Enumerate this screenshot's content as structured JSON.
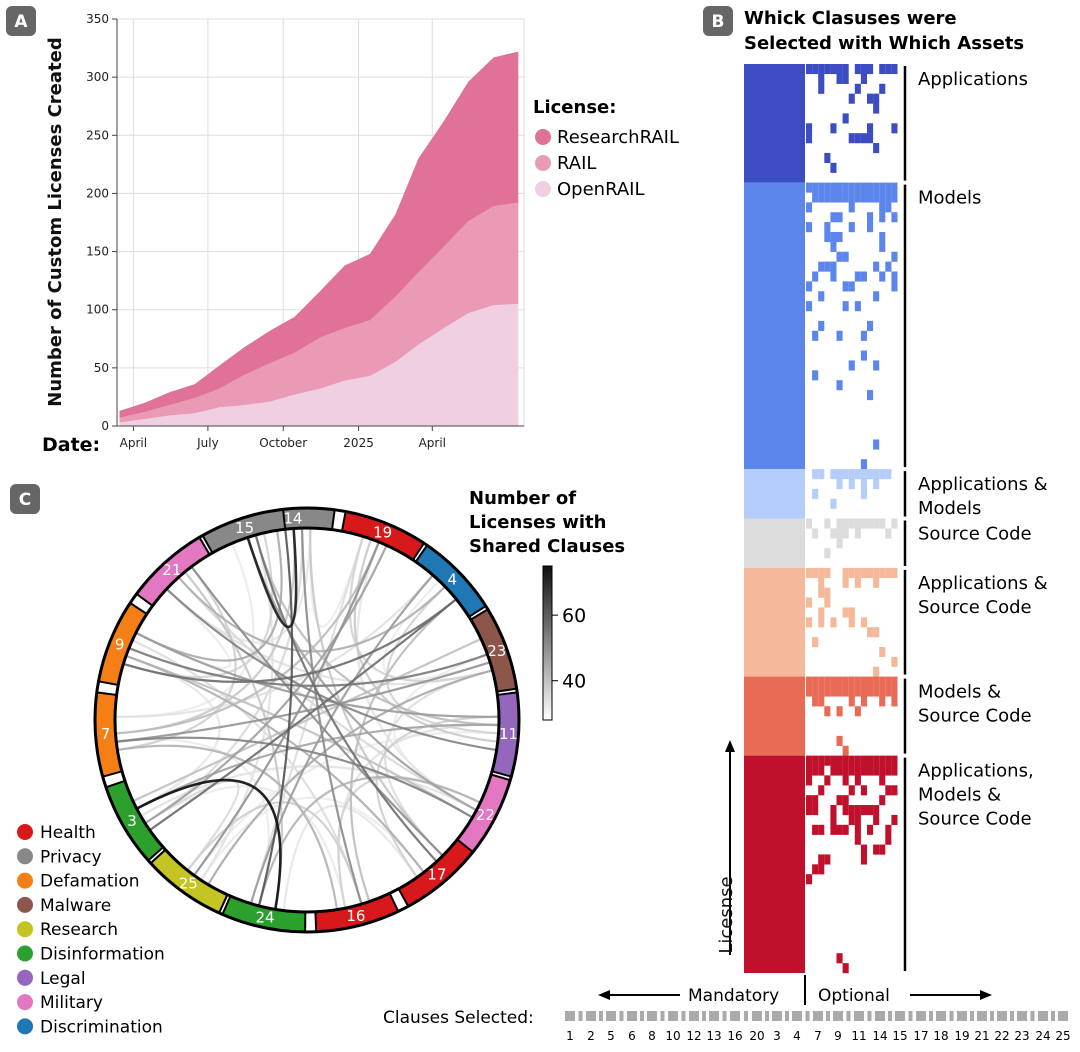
{
  "panels": {
    "a": {
      "badge": "A",
      "ylabel": "Number of Custom Licenses Created",
      "xlabel": "Date:",
      "legend_title": "License:"
    },
    "b": {
      "badge": "B",
      "title_line1": "Whick Clasuses were",
      "title_line2": "Selected with Which Assets",
      "row_axis_label": "Licesnse",
      "mandatory_label": "Mandatory",
      "optional_label": "Optional",
      "clauses_label": "Clauses Selected:"
    },
    "c": {
      "badge": "C",
      "colorbar_title": [
        "Number of",
        "Licenses with",
        "Shared Clauses"
      ]
    }
  },
  "chart_data": [
    {
      "type": "area",
      "stacked": true,
      "ylim": [
        0,
        350
      ],
      "yticks": [
        0,
        50,
        100,
        150,
        200,
        250,
        300,
        350
      ],
      "x": [
        "2024-03-15",
        "2024-04-15",
        "2024-05-15",
        "2024-06-15",
        "2024-07-15",
        "2024-08-15",
        "2024-09-15",
        "2024-10-15",
        "2024-11-15",
        "2024-12-15",
        "2025-01-15",
        "2025-02-15",
        "2025-03-15",
        "2025-04-15",
        "2025-05-15",
        "2025-06-15",
        "2025-07-15"
      ],
      "xticks": [
        {
          "date": "2024-04-01",
          "label": "April"
        },
        {
          "date": "2024-07-01",
          "label": "July"
        },
        {
          "date": "2024-10-01",
          "label": "October"
        },
        {
          "date": "2025-01-01",
          "label": "2025"
        },
        {
          "date": "2025-04-01",
          "label": "April"
        }
      ],
      "grid": true,
      "legend": "right",
      "series": [
        {
          "name": "ResearchRAIL",
          "color": "#e07199",
          "values": [
            6,
            8,
            11,
            12,
            20,
            24,
            28,
            31,
            40,
            54,
            57,
            71,
            98,
            108,
            120,
            128,
            130
          ]
        },
        {
          "name": "RAIL",
          "color": "#ea9ab5",
          "values": [
            4,
            6,
            9,
            13,
            16,
            26,
            33,
            36,
            44,
            45,
            48,
            56,
            62,
            70,
            79,
            85,
            87
          ]
        },
        {
          "name": "OpenRAIL",
          "color": "#f0cfe2",
          "values": [
            3,
            6,
            9,
            11,
            16,
            18,
            21,
            27,
            32,
            39,
            43,
            55,
            70,
            84,
            97,
            104,
            105
          ]
        }
      ]
    },
    {
      "type": "heatmap",
      "columns": [
        "1",
        "2",
        "5",
        "6",
        "8",
        "10",
        "12",
        "13",
        "16",
        "20",
        "3",
        "4",
        "7",
        "9",
        "11",
        "14",
        "15",
        "17",
        "18",
        "19",
        "21",
        "22",
        "23",
        "24",
        "25"
      ],
      "mandatory_columns": 10,
      "x_groups": [
        "Mandatory",
        "Optional"
      ],
      "row_groups": [
        {
          "label_lines": [
            "Applications"
          ],
          "color": "#3c4dc4",
          "rows": 12
        },
        {
          "label_lines": [
            "Models"
          ],
          "color": "#5d86ec",
          "rows": 29
        },
        {
          "label_lines": [
            "Applications &",
            "Models"
          ],
          "color": "#b4cdfb",
          "rows": 5
        },
        {
          "label_lines": [
            "Source Code"
          ],
          "color": "#dcdcdc",
          "rows": 5
        },
        {
          "label_lines": [
            "Applications &",
            "Source Code"
          ],
          "color": "#f6b89a",
          "rows": 11
        },
        {
          "label_lines": [
            "Models &",
            "Source Code"
          ],
          "color": "#e76b55",
          "rows": 8
        },
        {
          "label_lines": [
            "Applications,",
            "Models &",
            "Source Code"
          ],
          "color": "#c0102b",
          "rows": 22
        }
      ]
    },
    {
      "type": "chord",
      "colorbar": {
        "range": [
          28,
          75
        ],
        "ticks": [
          40,
          60
        ]
      },
      "categories": [
        {
          "name": "Health",
          "color": "#d7191c"
        },
        {
          "name": "Privacy",
          "color": "#888888"
        },
        {
          "name": "Defamation",
          "color": "#f57f17"
        },
        {
          "name": "Malware",
          "color": "#8c564b"
        },
        {
          "name": "Research",
          "color": "#c4c422"
        },
        {
          "name": "Disinformation",
          "color": "#2ca02c"
        },
        {
          "name": "Legal",
          "color": "#9467bd"
        },
        {
          "name": "Military",
          "color": "#e377c2"
        },
        {
          "name": "Discrimination",
          "color": "#1f77b4"
        }
      ],
      "segments": [
        {
          "label": "14",
          "category": "Privacy"
        },
        {
          "label": "19",
          "category": "Health"
        },
        {
          "label": "4",
          "category": "Discrimination"
        },
        {
          "label": "23",
          "category": "Malware"
        },
        {
          "label": "11",
          "category": "Legal"
        },
        {
          "label": "22",
          "category": "Military"
        },
        {
          "label": "17",
          "category": "Health"
        },
        {
          "label": "16",
          "category": "Health"
        },
        {
          "label": "24",
          "category": "Disinformation"
        },
        {
          "label": "25",
          "category": "Research"
        },
        {
          "label": "3",
          "category": "Disinformation"
        },
        {
          "label": "7",
          "category": "Defamation"
        },
        {
          "label": "9",
          "category": "Defamation"
        },
        {
          "label": "21",
          "category": "Military"
        },
        {
          "label": "15",
          "category": "Privacy"
        }
      ],
      "chords": [
        {
          "from": "15",
          "to": "14",
          "value": 72
        },
        {
          "from": "3",
          "to": "24",
          "value": 75
        },
        {
          "from": "14",
          "to": "24",
          "value": 60
        },
        {
          "from": "4",
          "to": "9",
          "value": 55
        },
        {
          "from": "21",
          "to": "11",
          "value": 50
        },
        {
          "from": "9",
          "to": "23",
          "value": 52
        },
        {
          "from": "7",
          "to": "22",
          "value": 50
        },
        {
          "from": "3",
          "to": "4",
          "value": 55
        },
        {
          "from": "15",
          "to": "17",
          "value": 54
        },
        {
          "from": "14",
          "to": "16",
          "value": 48
        },
        {
          "from": "19",
          "to": "25",
          "value": 47
        },
        {
          "from": "21",
          "to": "17",
          "value": 48
        },
        {
          "from": "9",
          "to": "11",
          "value": 45
        },
        {
          "from": "7",
          "to": "23",
          "value": 46
        },
        {
          "from": "15",
          "to": "22",
          "value": 44
        },
        {
          "from": "4",
          "to": "24",
          "value": 45
        },
        {
          "from": "19",
          "to": "3",
          "value": 44
        },
        {
          "from": "23",
          "to": "25",
          "value": 42
        },
        {
          "from": "11",
          "to": "3",
          "value": 43
        },
        {
          "from": "21",
          "to": "4",
          "value": 41
        },
        {
          "from": "14",
          "to": "9",
          "value": 42
        },
        {
          "from": "7",
          "to": "16",
          "value": 40
        },
        {
          "from": "22",
          "to": "24",
          "value": 40
        },
        {
          "from": "17",
          "to": "9",
          "value": 41
        },
        {
          "from": "19",
          "to": "7",
          "value": 38
        },
        {
          "from": "15",
          "to": "11",
          "value": 38
        },
        {
          "from": "4",
          "to": "16",
          "value": 38
        },
        {
          "from": "23",
          "to": "3",
          "value": 37
        },
        {
          "from": "21",
          "to": "24",
          "value": 36
        },
        {
          "from": "9",
          "to": "22",
          "value": 37
        },
        {
          "from": "14",
          "to": "17",
          "value": 36
        },
        {
          "from": "19",
          "to": "11",
          "value": 35
        },
        {
          "from": "7",
          "to": "14",
          "value": 35
        },
        {
          "from": "25",
          "to": "16",
          "value": 34
        },
        {
          "from": "21",
          "to": "7",
          "value": 34
        },
        {
          "from": "11",
          "to": "17",
          "value": 34
        },
        {
          "from": "15",
          "to": "9",
          "value": 33
        },
        {
          "from": "19",
          "to": "23",
          "value": 33
        },
        {
          "from": "22",
          "to": "16",
          "value": 33
        },
        {
          "from": "4",
          "to": "11",
          "value": 33
        },
        {
          "from": "3",
          "to": "25",
          "value": 32
        },
        {
          "from": "21",
          "to": "22",
          "value": 32
        },
        {
          "from": "14",
          "to": "3",
          "value": 32
        },
        {
          "from": "9",
          "to": "16",
          "value": 31
        },
        {
          "from": "23",
          "to": "17",
          "value": 31
        },
        {
          "from": "19",
          "to": "24",
          "value": 31
        },
        {
          "from": "15",
          "to": "25",
          "value": 30
        },
        {
          "from": "7",
          "to": "4",
          "value": 30
        },
        {
          "from": "21",
          "to": "23",
          "value": 30
        },
        {
          "from": "11",
          "to": "16",
          "value": 30
        },
        {
          "from": "3",
          "to": "22",
          "value": 30
        },
        {
          "from": "14",
          "to": "21",
          "value": 29
        },
        {
          "from": "24",
          "to": "17",
          "value": 29
        },
        {
          "from": "9",
          "to": "3",
          "value": 29
        },
        {
          "from": "19",
          "to": "22",
          "value": 29
        },
        {
          "from": "15",
          "to": "7",
          "value": 28
        },
        {
          "from": "4",
          "to": "23",
          "value": 28
        },
        {
          "from": "25",
          "to": "11",
          "value": 28
        },
        {
          "from": "16",
          "to": "3",
          "value": 28
        },
        {
          "from": "14",
          "to": "19",
          "value": 28
        },
        {
          "from": "21",
          "to": "9",
          "value": 28
        },
        {
          "from": "7",
          "to": "24",
          "value": 28
        },
        {
          "from": "23",
          "to": "22",
          "value": 28
        },
        {
          "from": "17",
          "to": "25",
          "value": 28
        }
      ]
    }
  ]
}
